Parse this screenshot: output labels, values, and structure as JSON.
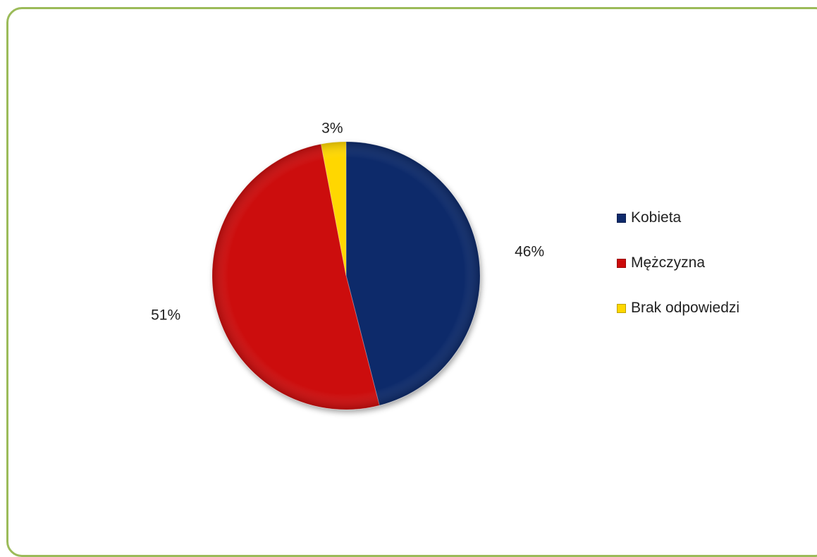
{
  "chart_data": {
    "type": "pie",
    "categories": [
      "Kobieta",
      "Mężczyzna",
      "Brak odpowiedzi"
    ],
    "values": [
      46,
      51,
      3
    ],
    "labels": [
      "46%",
      "51%",
      "3%"
    ],
    "colors": [
      "#0f2a6b",
      "#cc0a0a",
      "#ffd700"
    ],
    "legend_position": "right"
  }
}
